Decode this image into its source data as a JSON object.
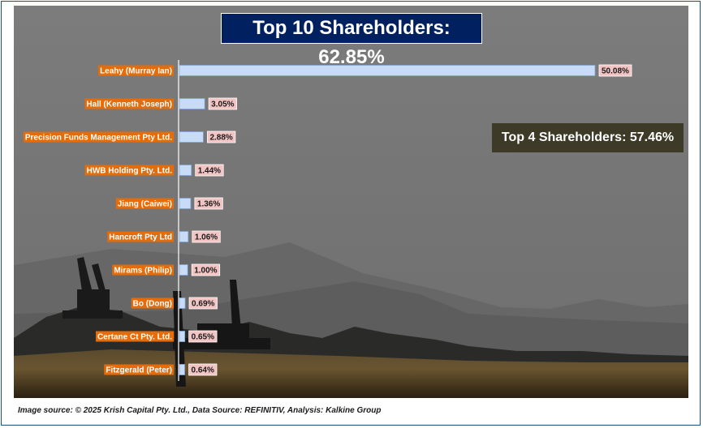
{
  "header": {
    "title": "Top 10 Shareholders: 62.85%"
  },
  "callout": {
    "text": "Top 4 Shareholders: 57.46%"
  },
  "footer": {
    "text": "Image source: © 2025 Krish Capital Pty. Ltd., Data Source: REFINITIV, Analysis: Kalkine Group"
  },
  "colors": {
    "title_bg": "#002060",
    "callout_bg": "#3d3a28",
    "label_bg": "#e46c0a",
    "bar_fill": "#c9dcf7",
    "value_box_bg": "#f2c4c4",
    "background": "#7a7a7a"
  },
  "chart_data": {
    "type": "bar",
    "orientation": "horizontal",
    "title": "Top 10 Shareholders: 62.85%",
    "categories": [
      "Leahy (Murray Ian)",
      "Hall (Kenneth Joseph)",
      "Precision Funds Management Pty Ltd.",
      "HWB Holding Pty. Ltd.",
      "Jiang (Caiwei)",
      "Hancroft Pty Ltd",
      "Mirams (Philip)",
      "Bo (Dong)",
      "Certane Ct Pty. Ltd.",
      "Fitzgerald (Peter)"
    ],
    "values": [
      50.08,
      3.05,
      2.88,
      1.44,
      1.36,
      1.06,
      1.0,
      0.69,
      0.65,
      0.64
    ],
    "value_labels": [
      "50.08%",
      "3.05%",
      "2.88%",
      "1.44%",
      "1.36%",
      "1.06%",
      "1.00%",
      "0.69%",
      "0.65%",
      "0.64%"
    ],
    "xlabel": "",
    "ylabel": "",
    "xlim": [
      0,
      50.08
    ],
    "grid": false,
    "legend": "none"
  }
}
